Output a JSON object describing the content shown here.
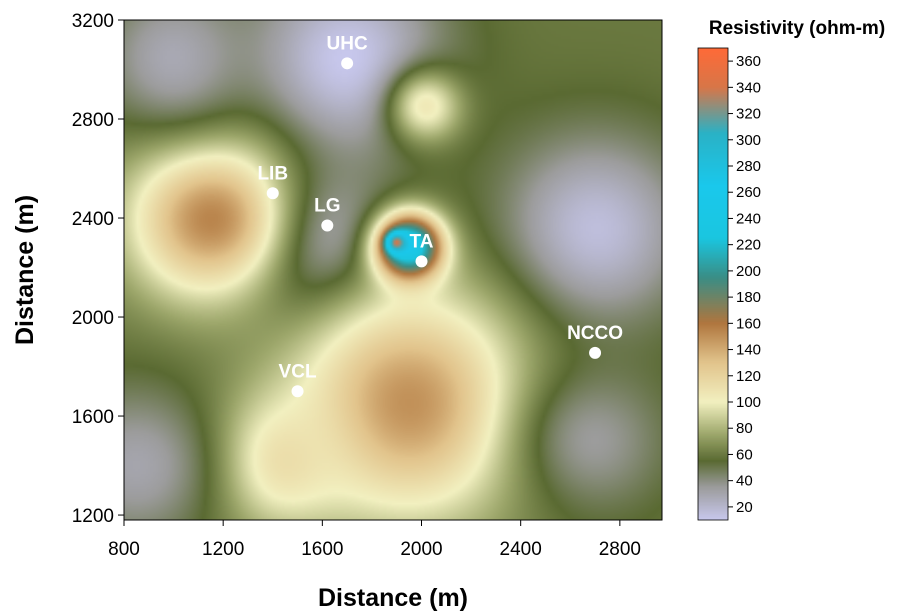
{
  "chart_data": {
    "type": "heatmap",
    "title": "",
    "xlabel": "Distance (m)",
    "ylabel": "Distance (m)",
    "xlim": [
      800,
      2970
    ],
    "ylim": [
      1180,
      3200
    ],
    "xticks": [
      800,
      1200,
      1600,
      2000,
      2400,
      2800
    ],
    "yticks": [
      1200,
      1600,
      2000,
      2400,
      2800,
      3200
    ],
    "colorbar": {
      "title": "Resistivity (ohm-m)",
      "range": [
        10,
        370
      ],
      "ticks": [
        20,
        40,
        60,
        80,
        100,
        120,
        140,
        160,
        180,
        200,
        220,
        240,
        260,
        280,
        300,
        320,
        340,
        360
      ],
      "colors": [
        {
          "v": 10,
          "c": "#c8c8ee"
        },
        {
          "v": 35,
          "c": "#9c9c9c"
        },
        {
          "v": 55,
          "c": "#5a6a32"
        },
        {
          "v": 75,
          "c": "#9ca66a"
        },
        {
          "v": 100,
          "c": "#f2f0c0"
        },
        {
          "v": 130,
          "c": "#e2c48c"
        },
        {
          "v": 160,
          "c": "#b0763e"
        },
        {
          "v": 195,
          "c": "#3a8e86"
        },
        {
          "v": 225,
          "c": "#1ac6e0"
        },
        {
          "v": 265,
          "c": "#1ac8ec"
        },
        {
          "v": 305,
          "c": "#2ab2c6"
        },
        {
          "v": 340,
          "c": "#d87648"
        },
        {
          "v": 370,
          "c": "#ff6a38"
        }
      ]
    },
    "features": [
      {
        "x": 1700,
        "y": 3040,
        "r": 380,
        "v": 10
      },
      {
        "x": 1550,
        "y": 2300,
        "r": 300,
        "v": 12
      },
      {
        "x": 2700,
        "y": 2350,
        "r": 380,
        "v": 15
      },
      {
        "x": 1150,
        "y": 2400,
        "r": 320,
        "v": 155
      },
      {
        "x": 1950,
        "y": 2280,
        "r": 130,
        "v": 270
      },
      {
        "x": 1900,
        "y": 2300,
        "r": 40,
        "v": 365
      },
      {
        "x": 1950,
        "y": 1650,
        "r": 450,
        "v": 150
      },
      {
        "x": 2020,
        "y": 2850,
        "r": 150,
        "v": 105
      },
      {
        "x": 1430,
        "y": 1420,
        "r": 260,
        "v": 115
      },
      {
        "x": 850,
        "y": 1400,
        "r": 320,
        "v": 30
      },
      {
        "x": 2700,
        "y": 1500,
        "r": 300,
        "v": 35
      },
      {
        "x": 1000,
        "y": 3050,
        "r": 300,
        "v": 28
      }
    ],
    "sites": [
      {
        "name": "UHC",
        "x": 1700,
        "y": 3025
      },
      {
        "name": "LIB",
        "x": 1400,
        "y": 2500
      },
      {
        "name": "LG",
        "x": 1620,
        "y": 2370
      },
      {
        "name": "TA",
        "x": 2000,
        "y": 2225
      },
      {
        "name": "NCCO",
        "x": 2700,
        "y": 1855
      },
      {
        "name": "VCL",
        "x": 1500,
        "y": 1700
      }
    ]
  }
}
